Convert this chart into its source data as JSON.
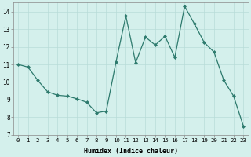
{
  "x": [
    0,
    1,
    2,
    3,
    4,
    5,
    6,
    7,
    8,
    9,
    10,
    11,
    12,
    13,
    14,
    15,
    16,
    17,
    18,
    19,
    20,
    21,
    22,
    23
  ],
  "y": [
    11.0,
    10.85,
    10.1,
    9.45,
    9.25,
    9.2,
    9.05,
    8.85,
    8.25,
    8.35,
    11.15,
    13.75,
    11.1,
    12.55,
    12.1,
    12.6,
    11.4,
    14.3,
    13.3,
    12.25,
    11.7,
    10.1,
    9.2,
    7.5
  ],
  "line_color": "#2d7a6d",
  "marker_color": "#2d7a6d",
  "bg_color": "#d4f0ec",
  "grid_color": "#b8dcd8",
  "xlabel": "Humidex (Indice chaleur)",
  "ylim": [
    7,
    14.5
  ],
  "xlim": [
    -0.5,
    23.5
  ],
  "yticks": [
    7,
    8,
    9,
    10,
    11,
    12,
    13,
    14
  ],
  "xticks": [
    0,
    1,
    2,
    3,
    4,
    5,
    6,
    7,
    8,
    9,
    10,
    11,
    12,
    13,
    14,
    15,
    16,
    17,
    18,
    19,
    20,
    21,
    22,
    23
  ],
  "xlabel_fontsize": 6.0,
  "tick_fontsize": 5.2
}
